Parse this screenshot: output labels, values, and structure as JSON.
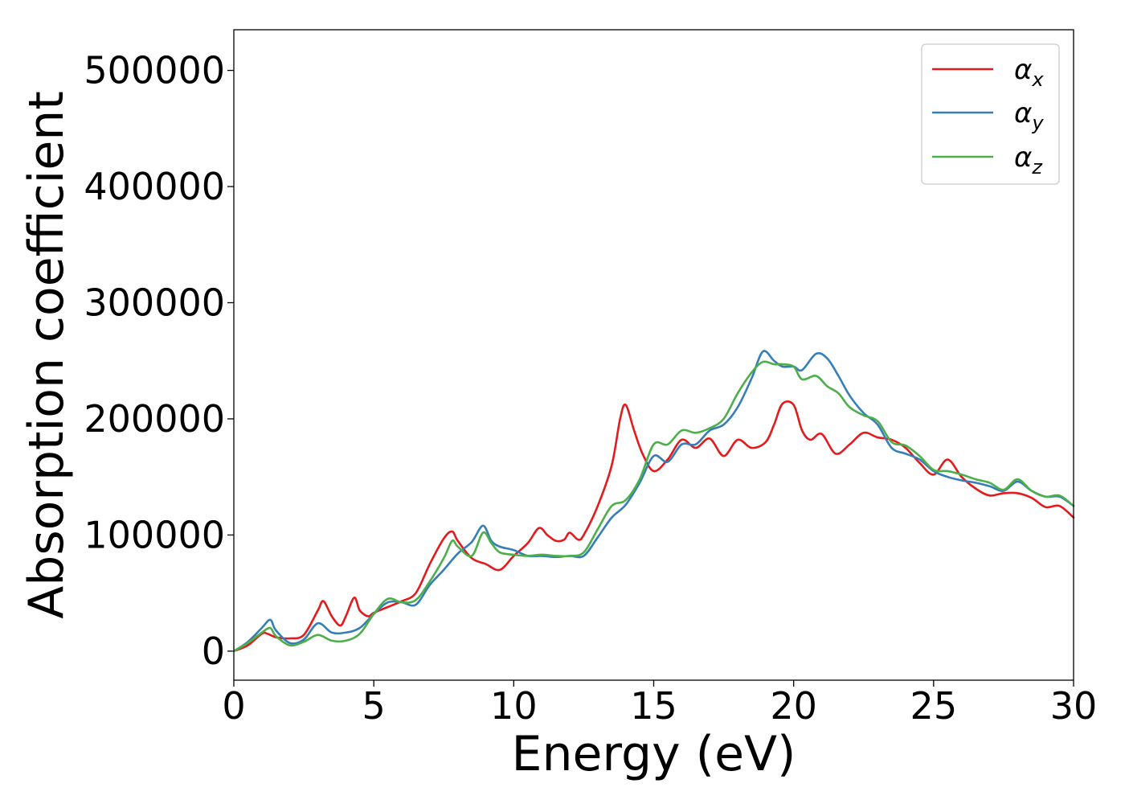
{
  "chart_data": {
    "type": "line",
    "title": "",
    "xlabel": "Energy (eV)",
    "ylabel": "Absorption coefficient",
    "xlim": [
      0,
      30
    ],
    "ylim": [
      -25000,
      535000
    ],
    "xticks": [
      0,
      5,
      10,
      15,
      20,
      25,
      30
    ],
    "xtick_labels": [
      "0",
      "5",
      "10",
      "15",
      "20",
      "25",
      "30"
    ],
    "yticks": [
      0,
      100000,
      200000,
      300000,
      400000,
      500000
    ],
    "ytick_labels": [
      "0",
      "100000",
      "200000",
      "300000",
      "400000",
      "500000"
    ],
    "grid": false,
    "legend_position": "top-right",
    "series": [
      {
        "name": "α",
        "subscript": "x",
        "color": "#e41a1c",
        "x": [
          0,
          0.5,
          1,
          1.2,
          1.5,
          2,
          2.5,
          3,
          3.2,
          3.5,
          3.8,
          4,
          4.3,
          4.5,
          4.8,
          5,
          5.5,
          6,
          6.5,
          7,
          7.5,
          7.8,
          8,
          8.5,
          9,
          9.5,
          10,
          10.5,
          10.9,
          11.2,
          11.5,
          11.8,
          12,
          12.3,
          12.5,
          13,
          13.5,
          13.8,
          14,
          14.3,
          14.6,
          15,
          15.5,
          16,
          16.5,
          17,
          17.5,
          18,
          18.5,
          19,
          19.3,
          19.6,
          20,
          20.3,
          20.6,
          21,
          21.5,
          22,
          22.5,
          23,
          23.5,
          24,
          24.5,
          25,
          25.5,
          26,
          26.5,
          27,
          27.5,
          28,
          28.5,
          29,
          29.5,
          30
        ],
        "y": [
          0,
          5000,
          15000,
          15000,
          12000,
          11000,
          14000,
          35000,
          43000,
          30000,
          22000,
          30000,
          46000,
          35000,
          30000,
          33000,
          38000,
          43000,
          50000,
          75000,
          97000,
          103000,
          95000,
          80000,
          75000,
          70000,
          82000,
          93000,
          106000,
          100000,
          95000,
          96000,
          102000,
          96000,
          100000,
          125000,
          160000,
          200000,
          212000,
          190000,
          170000,
          155000,
          165000,
          182000,
          175000,
          183000,
          168000,
          182000,
          175000,
          180000,
          195000,
          213000,
          212000,
          190000,
          182000,
          187000,
          170000,
          178000,
          188000,
          184000,
          182000,
          175000,
          162000,
          152000,
          165000,
          150000,
          140000,
          134000,
          136000,
          136000,
          132000,
          124000,
          125000,
          115000
        ]
      },
      {
        "name": "α",
        "subscript": "y",
        "color": "#377eb8",
        "x": [
          0,
          0.5,
          1,
          1.3,
          1.5,
          2,
          2.5,
          3,
          3.5,
          4,
          4.5,
          5,
          5.5,
          6,
          6.5,
          7,
          7.5,
          8,
          8.5,
          8.9,
          9.2,
          9.5,
          10,
          10.5,
          11,
          11.5,
          12,
          12.5,
          13,
          13.5,
          14,
          14.5,
          15,
          15.5,
          16,
          16.5,
          17,
          17.5,
          18,
          18.5,
          18.9,
          19.3,
          19.6,
          20,
          20.3,
          20.8,
          21.2,
          21.6,
          22,
          22.5,
          23,
          23.5,
          24,
          24.5,
          25,
          25.5,
          26,
          26.5,
          27,
          27.5,
          28,
          28.5,
          29,
          29.5,
          30
        ],
        "y": [
          0,
          8000,
          20000,
          27000,
          18000,
          7000,
          10000,
          24000,
          16000,
          16000,
          20000,
          32000,
          42000,
          42000,
          40000,
          57000,
          70000,
          84000,
          94000,
          108000,
          95000,
          90000,
          87000,
          82000,
          82000,
          81000,
          82000,
          82000,
          98000,
          115000,
          126000,
          145000,
          168000,
          163000,
          178000,
          178000,
          190000,
          195000,
          210000,
          235000,
          258000,
          250000,
          245000,
          245000,
          242000,
          256000,
          252000,
          237000,
          220000,
          205000,
          195000,
          175000,
          170000,
          165000,
          155000,
          150000,
          147000,
          145000,
          142000,
          138000,
          146000,
          138000,
          133000,
          133000,
          125000
        ]
      },
      {
        "name": "α",
        "subscript": "z",
        "color": "#4daf4a",
        "x": [
          0,
          0.5,
          1,
          1.3,
          1.5,
          2,
          2.5,
          3,
          3.5,
          4,
          4.5,
          5,
          5.5,
          6,
          6.5,
          7,
          7.5,
          7.8,
          8,
          8.5,
          8.9,
          9.2,
          9.5,
          10,
          10.5,
          11,
          11.5,
          12,
          12.5,
          13,
          13.5,
          14,
          14.5,
          15,
          15.5,
          16,
          16.5,
          17,
          17.5,
          18,
          18.5,
          18.9,
          19.3,
          19.6,
          20,
          20.3,
          20.8,
          21.2,
          21.6,
          22,
          22.5,
          23,
          23.5,
          24,
          24.5,
          25,
          25.5,
          26,
          26.5,
          27,
          27.5,
          28,
          28.5,
          29,
          29.5,
          30
        ],
        "y": [
          0,
          7000,
          16000,
          20000,
          13000,
          5000,
          8000,
          14000,
          9000,
          9000,
          15000,
          32000,
          45000,
          42000,
          44000,
          60000,
          80000,
          95000,
          90000,
          82000,
          102000,
          93000,
          85000,
          83000,
          82000,
          83000,
          82000,
          82000,
          85000,
          105000,
          125000,
          130000,
          148000,
          178000,
          178000,
          190000,
          188000,
          192000,
          200000,
          222000,
          240000,
          249000,
          247000,
          247000,
          245000,
          234000,
          237000,
          228000,
          222000,
          210000,
          203000,
          198000,
          180000,
          177000,
          168000,
          156000,
          155000,
          152000,
          148000,
          145000,
          139000,
          148000,
          138000,
          133000,
          134000,
          125000
        ]
      }
    ]
  }
}
